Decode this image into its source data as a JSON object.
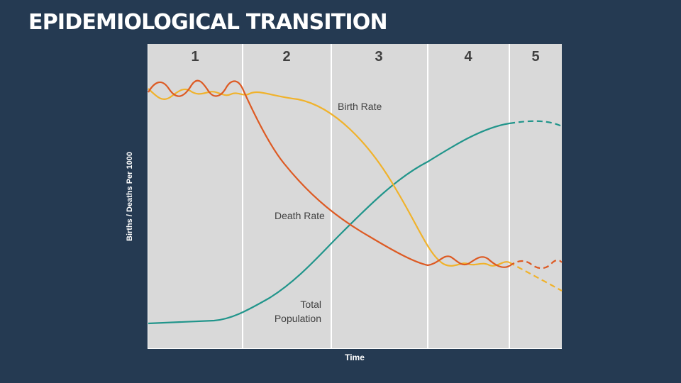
{
  "title": "EPIDEMIOLOGICAL TRANSITION",
  "chart": {
    "ylabel": "Births / Deaths Per 1000",
    "xlabel": "Time",
    "stages": [
      "1",
      "2",
      "3",
      "4",
      "5"
    ],
    "series": [
      {
        "name": "Birth Rate",
        "color": "#f0b22b"
      },
      {
        "name": "Death Rate",
        "color": "#dd5a23"
      },
      {
        "name": "Total Population",
        "color": "#21958b"
      }
    ],
    "labels": {
      "birth_rate": "Birth Rate",
      "death_rate": "Death Rate",
      "total_population_line1": "Total",
      "total_population_line2": "Population"
    }
  },
  "colors": {
    "background": "#253a52",
    "plot_background": "#d9d9d9",
    "divider": "#ffffff"
  }
}
